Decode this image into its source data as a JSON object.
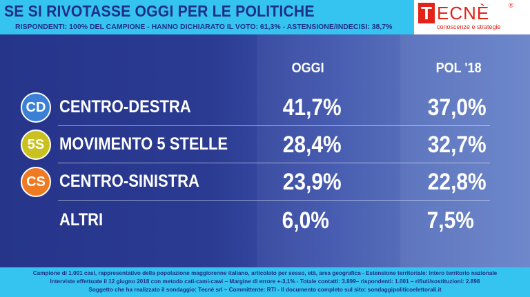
{
  "header": {
    "title": "SE SI RIVOTASSE OGGI PER LE POLITICHE",
    "subtitle": "RISPONDENTI: 100% DEL CAMPIONE - HANNO DICHIARATO IL VOTO: 61,3% - ASTENSIONE/INDECISI: 38,7%"
  },
  "logo": {
    "letter": "T",
    "rest": "ECNÈ",
    "registered": "®",
    "tagline": "conoscenze e strategie",
    "color": "#e2231a"
  },
  "chart_data": {
    "type": "table",
    "columns": [
      "OGGI",
      "POL '18"
    ],
    "rows": [
      {
        "badge": "CD",
        "label": "CENTRO-DESTRA",
        "oggi": "41,7%",
        "pol18": "37,0%",
        "badge_color": "#3b7fd6"
      },
      {
        "badge": "5S",
        "label": "MOVIMENTO 5 STELLE",
        "oggi": "28,4%",
        "pol18": "32,7%",
        "badge_color": "#c9c21e"
      },
      {
        "badge": "CS",
        "label": "CENTRO-SINISTRA",
        "oggi": "23,9%",
        "pol18": "22,8%",
        "badge_color": "#ef7a22"
      },
      {
        "badge": "",
        "label": "ALTRI",
        "oggi": "6,0%",
        "pol18": "7,5%",
        "badge_color": ""
      }
    ]
  },
  "footer": {
    "line1": "Campione di 1.001 casi, rappresentativo della popolazione maggiorenne italiano, articolato per sesso, età, area geografica - Estensione territoriale: intero territorio nazionale",
    "line2": "Interviste effettuate il 12 giugno 2018 con metodo cati-cami-cawi – Margine di errore +-3,1% - Totale contatti: 3.899– rispondenti: 1.001 – rifiuti/sostituzioni: 2.898",
    "line3": "Soggetto che ha realizzato il sondaggio: Tecnè srl – Committente: RTI - Il documento completo sul sito: sondaggipoliticoelettorali.it"
  },
  "colors": {
    "header_bg": "#35c4ef",
    "panel_bg": "#2a3a8c",
    "text_dark": "#1e2f8a"
  }
}
